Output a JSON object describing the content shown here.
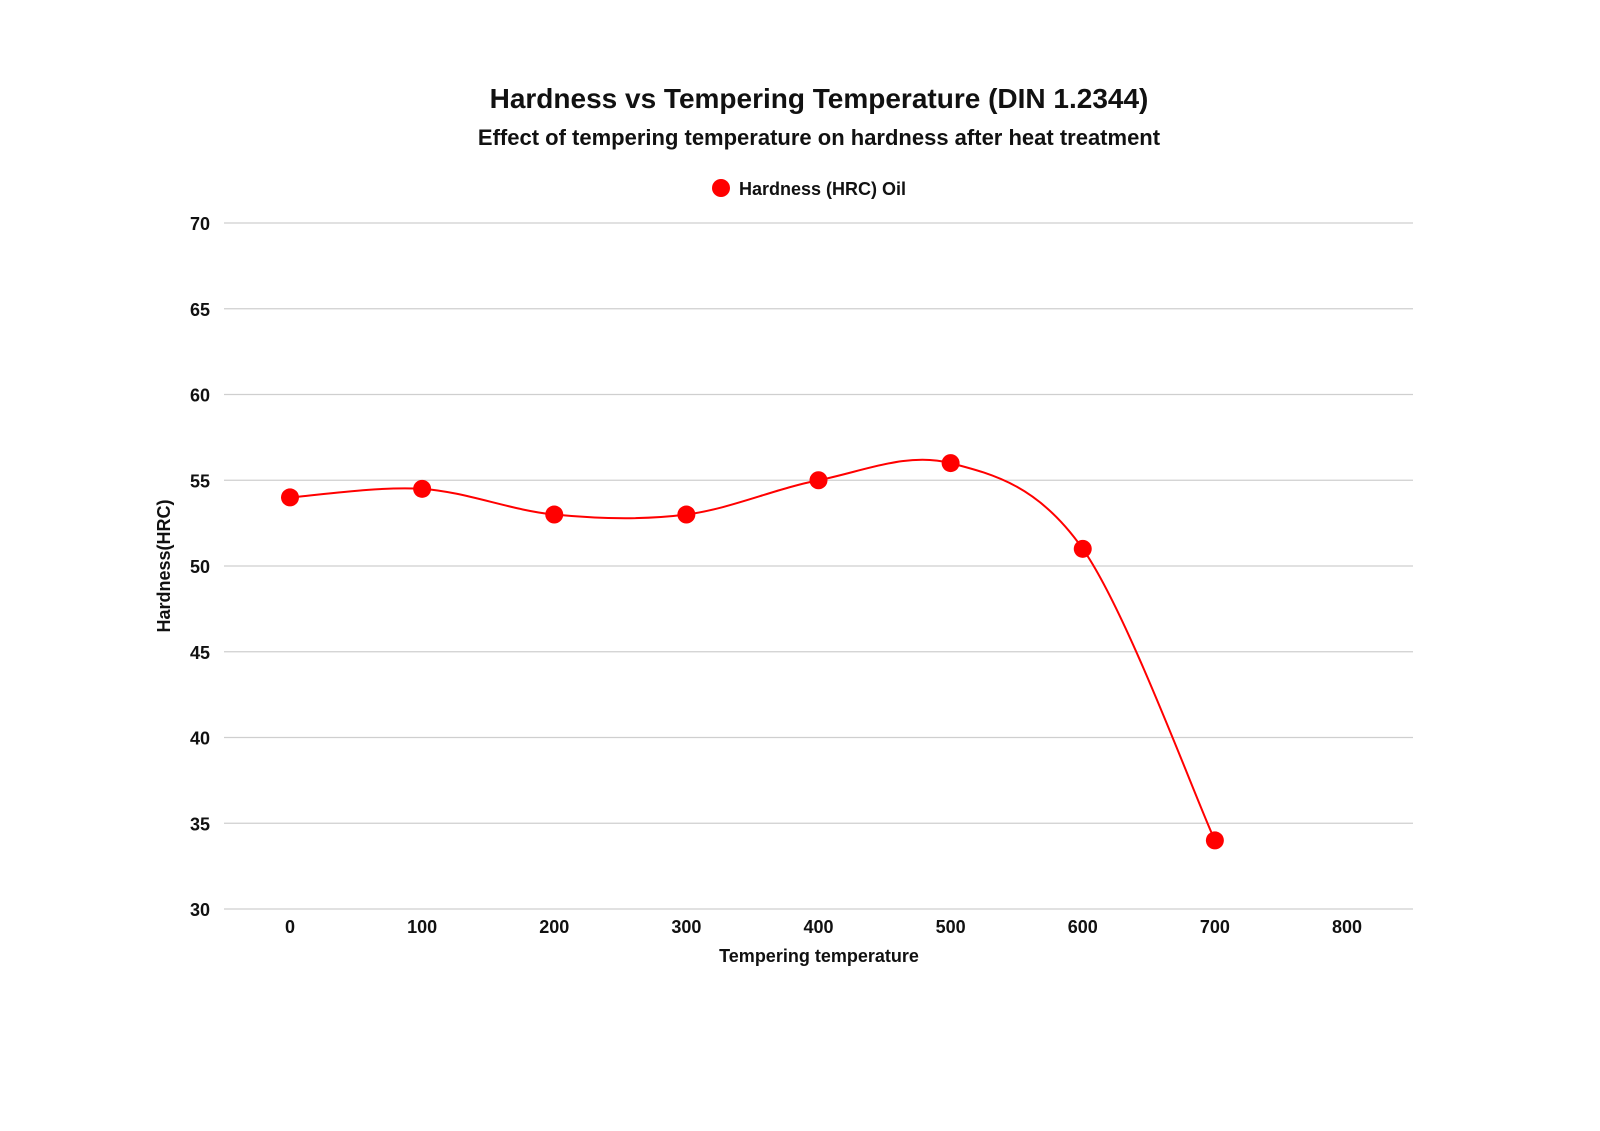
{
  "chart_data": {
    "type": "line",
    "title": "Hardness vs Tempering Temperature (DIN 1.2344)",
    "subtitle": "Effect of tempering temperature on hardness after heat treatment",
    "xlabel": "Tempering temperature",
    "ylabel": "Hardness(HRC)",
    "xlim": [
      -50,
      850
    ],
    "ylim": [
      30,
      70
    ],
    "xticks": [
      0,
      100,
      200,
      300,
      400,
      500,
      600,
      700,
      800
    ],
    "yticks": [
      30,
      35,
      40,
      45,
      50,
      55,
      60,
      65,
      70
    ],
    "grid": "horizontal",
    "legend_position": "top",
    "series": [
      {
        "name": "Hardness (HRC) Oil",
        "color": "#ff0000",
        "smooth": true,
        "x": [
          0,
          100,
          200,
          300,
          400,
          500,
          600,
          700
        ],
        "y": [
          54,
          54.5,
          53,
          53,
          55,
          56,
          51,
          34
        ]
      }
    ]
  }
}
